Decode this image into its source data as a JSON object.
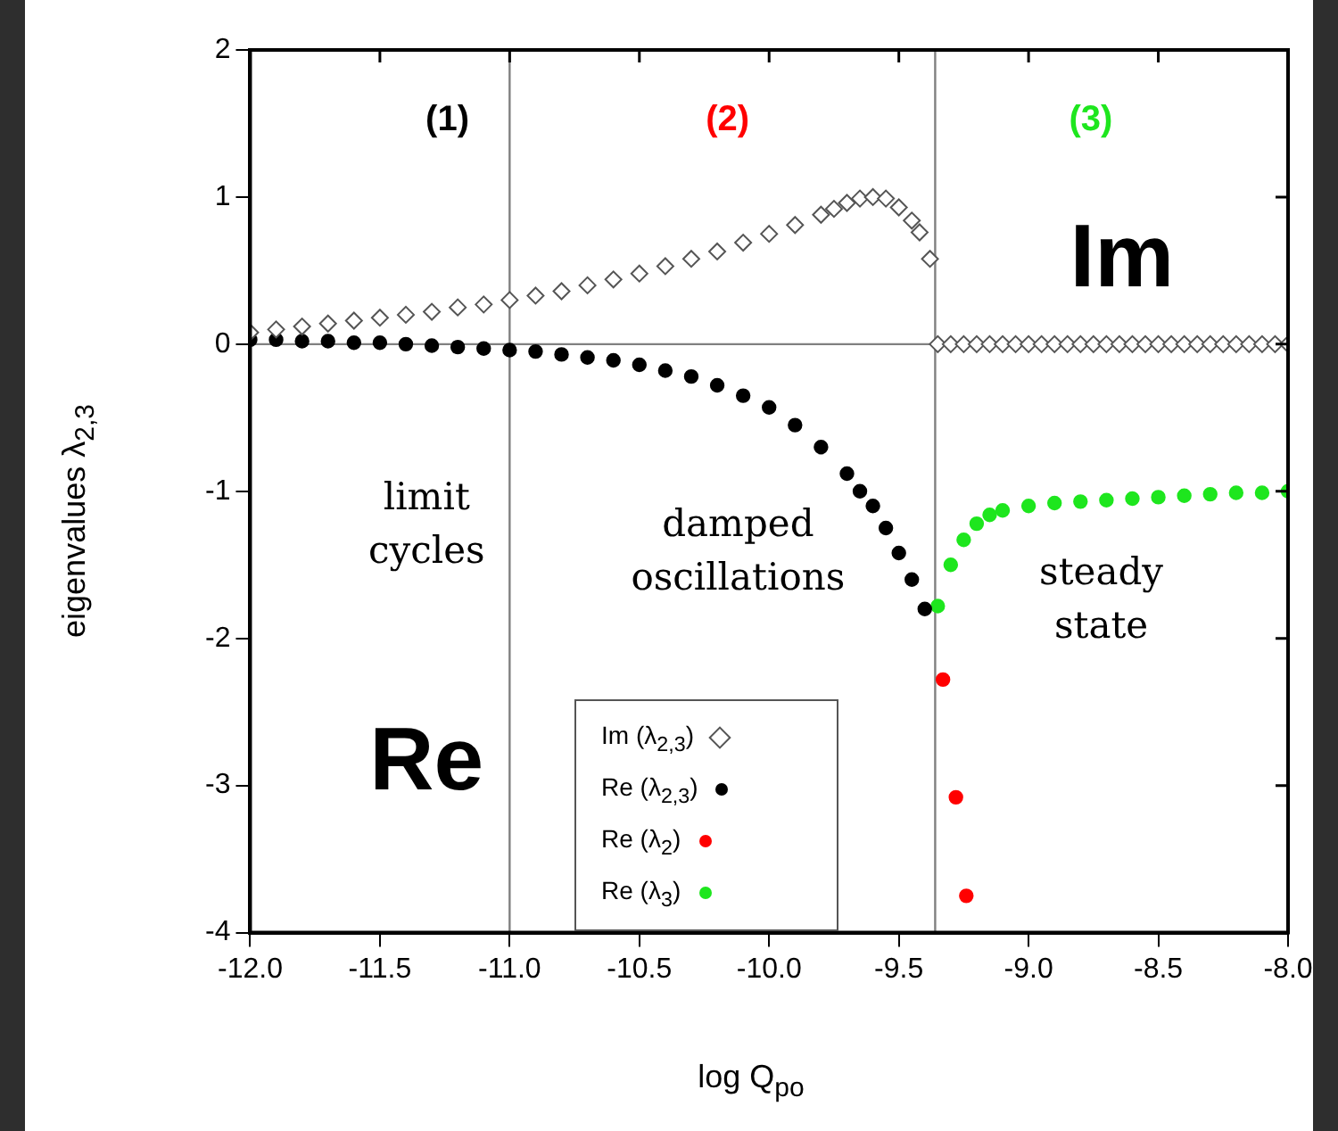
{
  "chart_data": {
    "type": "scatter",
    "xlabel": "log Q$_{po}$",
    "ylabel": "eigenvalues λ$_{2,3}$",
    "xlim": [
      -12,
      -8
    ],
    "xticks": [
      {
        "value": -12,
        "label": "-12.0"
      },
      {
        "value": -11.5,
        "label": "-11.5"
      },
      {
        "value": -11,
        "label": "-11.0"
      },
      {
        "value": -10.5,
        "label": "-10.5"
      },
      {
        "value": -10,
        "label": "-10.0"
      },
      {
        "value": -9.5,
        "label": "-9.5"
      },
      {
        "value": -9,
        "label": "-9.0"
      },
      {
        "value": -8.5,
        "label": "-8.5"
      },
      {
        "value": -8,
        "label": "-8.0"
      }
    ],
    "ylim": [
      -4,
      2
    ],
    "yticks": [
      -4,
      -3,
      -2,
      -1,
      0,
      1,
      2
    ],
    "grid": false,
    "legend": "bottom",
    "ref_lines": [
      {
        "axis": "x",
        "value": -11,
        "color": "#808080"
      },
      {
        "axis": "x",
        "value": -9.36,
        "color": "#808080"
      },
      {
        "axis": "y",
        "value": 0,
        "color": "#808080"
      }
    ],
    "annotations": [
      "(1)",
      "(2)",
      "(3)",
      "Im",
      "Re",
      "limit cycles",
      "damped oscillations",
      "steady state"
    ],
    "series": [
      {
        "name": "Im (λ$_{2,3}$)",
        "color": "#555555",
        "marker": "diamond",
        "x": [
          -12.0,
          -11.9,
          -11.8,
          -11.7,
          -11.6,
          -11.5,
          -11.4,
          -11.3,
          -11.2,
          -11.1,
          -11.0,
          -10.9,
          -10.8,
          -10.7,
          -10.6,
          -10.5,
          -10.4,
          -10.3,
          -10.2,
          -10.1,
          -10.0,
          -9.9,
          -9.8,
          -9.75,
          -9.7,
          -9.65,
          -9.6,
          -9.55,
          -9.5,
          -9.45,
          -9.42,
          -9.38,
          -9.35,
          -9.3,
          -9.25,
          -9.2,
          -9.15,
          -9.1,
          -9.05,
          -9.0,
          -8.95,
          -8.9,
          -8.85,
          -8.8,
          -8.75,
          -8.7,
          -8.65,
          -8.6,
          -8.55,
          -8.5,
          -8.45,
          -8.4,
          -8.35,
          -8.3,
          -8.25,
          -8.2,
          -8.15,
          -8.1,
          -8.05,
          -8.0
        ],
        "values": [
          0.08,
          0.1,
          0.12,
          0.14,
          0.16,
          0.18,
          0.2,
          0.22,
          0.25,
          0.27,
          0.3,
          0.33,
          0.36,
          0.4,
          0.44,
          0.48,
          0.53,
          0.58,
          0.63,
          0.69,
          0.75,
          0.81,
          0.88,
          0.92,
          0.96,
          0.99,
          1.0,
          0.99,
          0.93,
          0.84,
          0.76,
          0.58,
          0,
          0,
          0,
          0,
          0,
          0,
          0,
          0,
          0,
          0,
          0,
          0,
          0,
          0,
          0,
          0,
          0,
          0,
          0,
          0,
          0,
          0,
          0,
          0,
          0,
          0,
          0,
          0
        ]
      },
      {
        "name": "Re (λ$_{2,3}$)",
        "color": "#000000",
        "marker": "circle",
        "x": [
          -12.0,
          -11.9,
          -11.8,
          -11.7,
          -11.6,
          -11.5,
          -11.4,
          -11.3,
          -11.2,
          -11.1,
          -11.0,
          -10.9,
          -10.8,
          -10.7,
          -10.6,
          -10.5,
          -10.4,
          -10.3,
          -10.2,
          -10.1,
          -10.0,
          -9.9,
          -9.8,
          -9.7,
          -9.65,
          -9.6,
          -9.55,
          -9.5,
          -9.45,
          -9.4
        ],
        "values": [
          0.03,
          0.03,
          0.02,
          0.02,
          0.01,
          0.01,
          0.0,
          -0.01,
          -0.02,
          -0.03,
          -0.04,
          -0.05,
          -0.07,
          -0.09,
          -0.11,
          -0.14,
          -0.18,
          -0.22,
          -0.28,
          -0.35,
          -0.43,
          -0.55,
          -0.7,
          -0.88,
          -1.0,
          -1.1,
          -1.25,
          -1.42,
          -1.6,
          -1.8
        ]
      },
      {
        "name": "Re (λ$_{2}$)",
        "color": "#ff0000",
        "marker": "circle",
        "x": [
          -9.33,
          -9.28,
          -9.24
        ],
        "values": [
          -2.28,
          -3.08,
          -3.75
        ]
      },
      {
        "name": "Re (λ$_{3}$)",
        "color": "#1ee61e",
        "marker": "circle",
        "x": [
          -9.35,
          -9.3,
          -9.25,
          -9.2,
          -9.15,
          -9.1,
          -9.0,
          -8.9,
          -8.8,
          -8.7,
          -8.6,
          -8.5,
          -8.4,
          -8.3,
          -8.2,
          -8.1,
          -8.0
        ],
        "values": [
          -1.78,
          -1.5,
          -1.33,
          -1.22,
          -1.16,
          -1.13,
          -1.1,
          -1.08,
          -1.07,
          -1.06,
          -1.05,
          -1.04,
          -1.03,
          -1.02,
          -1.01,
          -1.01,
          -1.0
        ]
      }
    ]
  }
}
